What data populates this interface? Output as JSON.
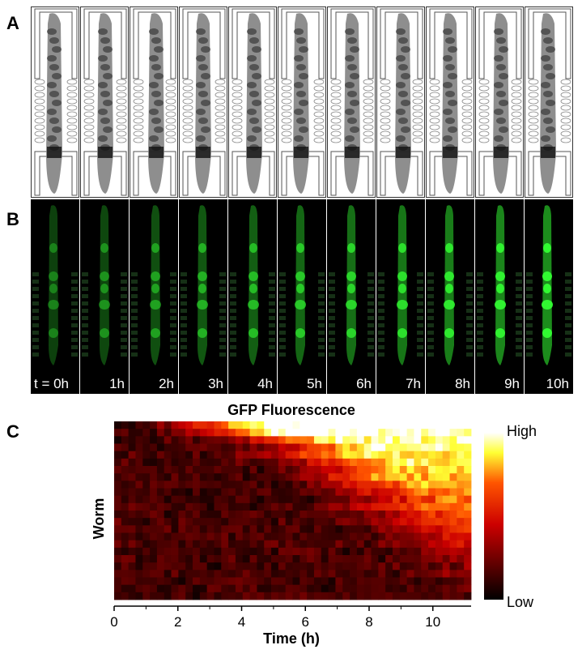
{
  "panels": {
    "a": "A",
    "b": "B",
    "c": "C"
  },
  "panel_b": {
    "time_labels": [
      "t = 0h",
      "1h",
      "2h",
      "3h",
      "4h",
      "5h",
      "6h",
      "7h",
      "8h",
      "9h",
      "10h"
    ]
  },
  "chart_data": {
    "type": "heatmap",
    "title": "GFP Fluorescence",
    "xlabel": "Time (h)",
    "ylabel": "Worm",
    "xlim": [
      0,
      11.2
    ],
    "x_ticks": [
      "0",
      "2",
      "4",
      "6",
      "8",
      "10"
    ],
    "colorbar": {
      "high_label": "High",
      "low_label": "Low",
      "colormap": "hot"
    },
    "columns": 50,
    "rows": [
      {
        "onset": 1.0,
        "level": 1.0
      },
      {
        "onset": 1.4,
        "level": 0.95
      },
      {
        "onset": 3.0,
        "level": 0.88
      },
      {
        "onset": 4.0,
        "level": 0.85
      },
      {
        "onset": 3.5,
        "level": 0.8
      },
      {
        "onset": 4.5,
        "level": 0.78
      },
      {
        "onset": 5.0,
        "level": 0.74
      },
      {
        "onset": 4.8,
        "level": 0.72
      },
      {
        "onset": 5.5,
        "level": 0.68
      },
      {
        "onset": 6.0,
        "level": 0.66
      },
      {
        "onset": 6.5,
        "level": 0.64
      },
      {
        "onset": 5.8,
        "level": 0.62
      },
      {
        "onset": 7.0,
        "level": 0.6
      },
      {
        "onset": 6.8,
        "level": 0.56
      },
      {
        "onset": 7.5,
        "level": 0.55
      },
      {
        "onset": 8.0,
        "level": 0.5
      },
      {
        "onset": 7.8,
        "level": 0.46
      },
      {
        "onset": 8.5,
        "level": 0.44
      },
      {
        "onset": 9.0,
        "level": 0.4
      },
      {
        "onset": 9.5,
        "level": 0.36
      },
      {
        "onset": 8.8,
        "level": 0.32
      },
      {
        "onset": 10.0,
        "level": 0.28
      },
      {
        "onset": 9.8,
        "level": 0.24
      },
      {
        "onset": 10.5,
        "level": 0.2
      }
    ],
    "colors": {
      "low": "#000000",
      "mid": "#cc0000",
      "high": "#ffff66",
      "max": "#ffffff",
      "gfp": "#33ff33"
    }
  }
}
